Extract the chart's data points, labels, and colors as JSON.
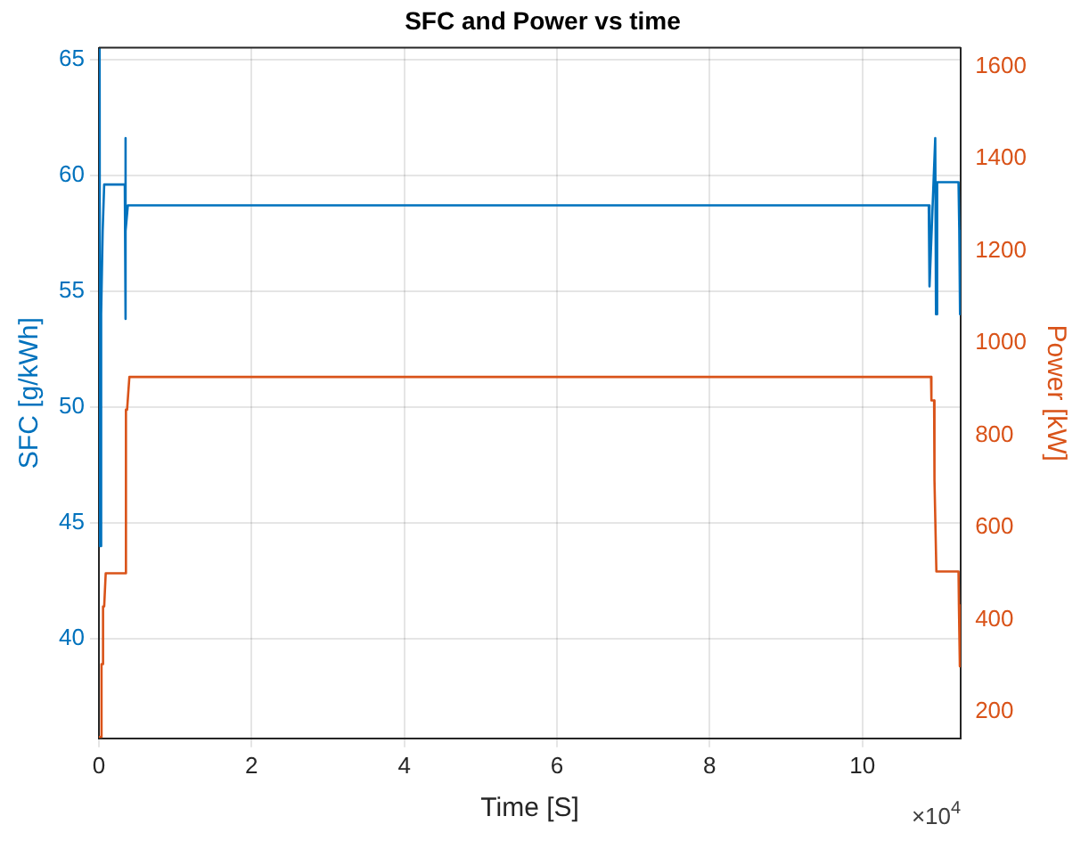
{
  "chart_data": {
    "type": "line",
    "title": "SFC and Power vs time",
    "xlabel": "Time [S]",
    "ylabel": "SFC [g/kWh]",
    "y2label": "Power [kW]",
    "annotations": [
      "×10$^{4}$"
    ],
    "xlim": [
      0,
      11.29
    ],
    "xticks": [
      0,
      2,
      4,
      6,
      8,
      10
    ],
    "ylim": [
      35.7,
      65.5
    ],
    "yticks": [
      40,
      45,
      50,
      55,
      60,
      65
    ],
    "y2lim": [
      143,
      1641
    ],
    "y2ticks": [
      200,
      400,
      600,
      800,
      1000,
      1200,
      1400,
      1600
    ],
    "grid": true,
    "legend": false,
    "marker": "none",
    "line_style": "solid",
    "series": [
      {
        "color": "#0072bd",
        "x": [
          0.01,
          0.015,
          0.03,
          0.05,
          0.07,
          0.34,
          0.345,
          0.35,
          0.355,
          0.38,
          10.87,
          10.88,
          10.955,
          10.965,
          10.98,
          11.26,
          11.27,
          11.28
        ],
        "values": [
          65.5,
          44,
          54,
          57.6,
          59.6,
          59.6,
          61.6,
          53.8,
          57.6,
          58.7,
          58.7,
          55.2,
          61.6,
          54,
          59.7,
          59.7,
          57.6,
          54
        ]
      },
      {
        "color": "#d95319",
        "axis": "y2",
        "x": [
          0,
          0.03,
          0.035,
          0.05,
          0.055,
          0.07,
          0.09,
          0.345,
          0.355,
          0.37,
          0.4,
          10.9,
          10.905,
          10.94,
          10.945,
          10.97,
          11.26,
          11.265,
          11.275,
          11.28
        ],
        "values": [
          146,
          146,
          304,
          304,
          429,
          429,
          501,
          501,
          856,
          856,
          927,
          927,
          876,
          876,
          703,
          505,
          505,
          432,
          432,
          299
        ]
      }
    ]
  }
}
